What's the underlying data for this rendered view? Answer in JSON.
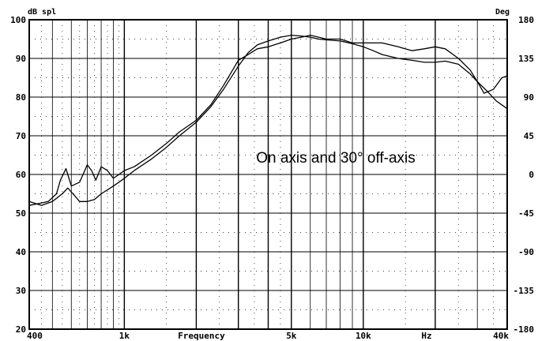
{
  "chart_data": {
    "type": "line",
    "x_scale": "log",
    "xlim": [
      400,
      40000
    ],
    "ylim_left": [
      20,
      100
    ],
    "ylim_right": [
      -180,
      180
    ],
    "left_axis_label": "dB spl",
    "right_axis_label": "Deg",
    "xlabel": "Frequency",
    "x_unit_label": "Hz",
    "annotation": "On axis and 30° off-axis",
    "grid": true,
    "x_ticks": [
      {
        "value": 400,
        "label": "400"
      },
      {
        "value": 1000,
        "label": "1k"
      },
      {
        "value": 5000,
        "label": "5k"
      },
      {
        "value": 10000,
        "label": "10k"
      },
      {
        "value": 40000,
        "label": "40k"
      }
    ],
    "y_ticks_left": [
      {
        "value": 100,
        "label": "100"
      },
      {
        "value": 90,
        "label": "90"
      },
      {
        "value": 80,
        "label": "80"
      },
      {
        "value": 70,
        "label": "70"
      },
      {
        "value": 60,
        "label": "60"
      },
      {
        "value": 50,
        "label": "50"
      },
      {
        "value": 40,
        "label": "40"
      },
      {
        "value": 30,
        "label": "30"
      },
      {
        "value": 20,
        "label": "20"
      }
    ],
    "y_ticks_right": [
      {
        "value": 180,
        "label": "180"
      },
      {
        "value": 135,
        "label": "135"
      },
      {
        "value": 90,
        "label": "90"
      },
      {
        "value": 45,
        "label": "45"
      },
      {
        "value": 0,
        "label": "0"
      },
      {
        "value": -45,
        "label": "-45"
      },
      {
        "value": -90,
        "label": "-90"
      },
      {
        "value": -135,
        "label": "-135"
      },
      {
        "value": -180,
        "label": "-180"
      }
    ],
    "series": [
      {
        "x": [
          400,
          440,
          480,
          520,
          540,
          570,
          600,
          650,
          700,
          730,
          760,
          800,
          850,
          900,
          950,
          1000,
          1100,
          1300,
          1500,
          1700,
          2000,
          2300,
          2600,
          3000,
          3300,
          3600,
          4000,
          4500,
          5000,
          5500,
          6000,
          6500,
          7000,
          8000,
          9000,
          10000,
          11000,
          12000,
          14000,
          16000,
          18000,
          20000,
          22000,
          25000,
          28000,
          30000,
          32000,
          35000,
          38000,
          40000
        ],
        "y": [
          52,
          52.5,
          53,
          55,
          58.5,
          61.5,
          57,
          58,
          62.5,
          61,
          58.5,
          62,
          61,
          59,
          60,
          61,
          62,
          65,
          68,
          71,
          74,
          78,
          83,
          89.5,
          91,
          92.5,
          93,
          94,
          95,
          95.5,
          96,
          95.5,
          95,
          95,
          94,
          94,
          94,
          94,
          93,
          92,
          92.5,
          93,
          92.5,
          90,
          87,
          84,
          81,
          82,
          85,
          85.5
        ]
      },
      {
        "x": [
          400,
          450,
          500,
          550,
          580,
          610,
          650,
          700,
          750,
          800,
          850,
          900,
          950,
          1000,
          1100,
          1300,
          1500,
          1700,
          2000,
          2300,
          2600,
          3000,
          3300,
          3600,
          4000,
          4500,
          5000,
          5500,
          6000,
          6500,
          7000,
          8000,
          9000,
          10000,
          11000,
          12000,
          14000,
          16000,
          18000,
          20000,
          22000,
          25000,
          28000,
          30000,
          33000,
          36000,
          40000
        ],
        "y": [
          53,
          52,
          53,
          55,
          56.5,
          55,
          53,
          53,
          53.5,
          55,
          56,
          57,
          58,
          59,
          61,
          64,
          67,
          70,
          73.5,
          77.5,
          82,
          88,
          91.5,
          93.5,
          94.5,
          95.5,
          96,
          95.8,
          95.5,
          95,
          94.8,
          94.5,
          93.8,
          93,
          92,
          91,
          90,
          89.5,
          89,
          89,
          89.3,
          88.5,
          86,
          84,
          81.5,
          79,
          77
        ]
      }
    ]
  }
}
